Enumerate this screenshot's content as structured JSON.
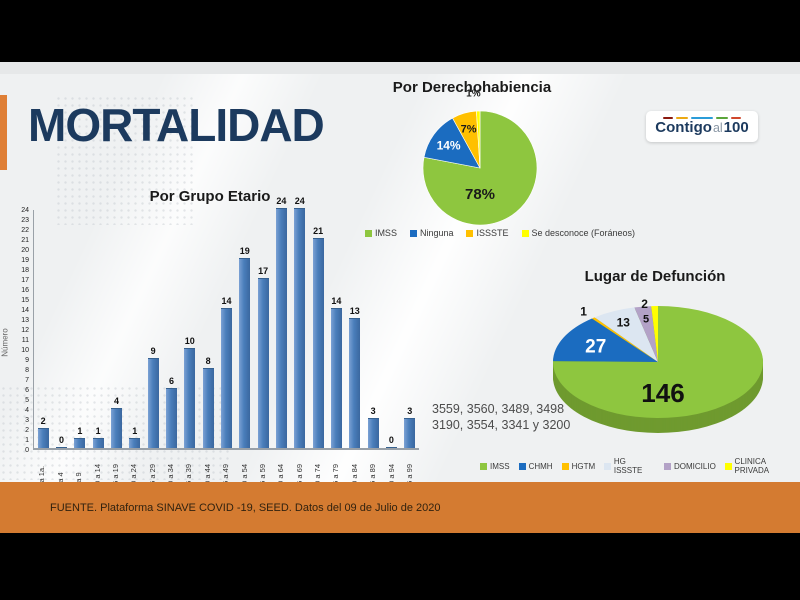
{
  "slide": {
    "title": "MORTALIDAD",
    "footer": "FUENTE. Plataforma SINAVE COVID -19, SEED. Datos del 09 de Julio de 2020",
    "annotation": {
      "line1": "3559, 3560, 3489, 3498",
      "line2": "3190, 3554, 3341 y 3200"
    },
    "logo": {
      "word1": "Contigo",
      "word2": "al",
      "word3": "100",
      "dash_colors": [
        "#8b1a10",
        "#eca913",
        "#2b9cd8",
        "#5aa53a",
        "#d0472c"
      ],
      "dash_widths": [
        10,
        12,
        22,
        12,
        10
      ]
    }
  },
  "colors": {
    "title_navy": "#1c3a5e",
    "accent_orange": "#df7f36",
    "band_orange": "#d47b31",
    "bar_blue": "#4a7ebb"
  },
  "chart_data": [
    {
      "id": "por_grupo_etario",
      "type": "bar",
      "title": "Por Grupo Etario",
      "ylabel": "Número",
      "ylim": [
        0,
        24
      ],
      "y_tick_step": 1,
      "grid": false,
      "categories": [
        "< a 1a.",
        "1 a 4",
        "5 a 9",
        "10 a 14",
        "15 a 19",
        "20 a 24",
        "25 a 29",
        "30 a 34",
        "35 a 39",
        "40 a 44",
        "45 a 49",
        "50 a 54",
        "55 a 59",
        "60 a 64",
        "65 a 69",
        "70 a 74",
        "75 a 79",
        "80 a 84",
        "85 a 89",
        "90 a 94",
        "95 a 99"
      ],
      "values": [
        2,
        0,
        1,
        1,
        4,
        1,
        9,
        6,
        10,
        8,
        14,
        19,
        17,
        24,
        24,
        21,
        14,
        13,
        3,
        0,
        3
      ],
      "bar_color": "#4a7ebb"
    },
    {
      "id": "por_derechohabiencia",
      "type": "pie",
      "title": "Por Derechohabiencia",
      "legend_position": "bottom",
      "slice_stroke": "#ffffff",
      "slices": [
        {
          "label": "IMSS",
          "value": 78,
          "display": "78%",
          "color": "#8ec63f",
          "label_color": "#1a1a1a",
          "label_size": 15,
          "lf": 0.45,
          "la": 180
        },
        {
          "label": "Ninguna",
          "value": 14,
          "display": "14%",
          "color": "#1b6cc0",
          "label_color": "#ffffff",
          "label_size": 12,
          "lf": 0.68
        },
        {
          "label": "ISSSTE",
          "value": 7,
          "display": "7%",
          "color": "#ffc000",
          "label_color": "#1a1a1a",
          "label_size": 11,
          "lf": 0.72
        },
        {
          "label": "Se desconoce (Foráneos)",
          "value": 1,
          "display": "1%",
          "color": "#ffff00",
          "label_color": "#1a1a1a",
          "label_size": 10,
          "lf": 1.32,
          "la": 355
        }
      ]
    },
    {
      "id": "lugar_de_defuncion",
      "type": "pie",
      "title": "Lugar de Defunción",
      "effect": "3d",
      "legend_position": "bottom",
      "side_color": "#6f9a2f",
      "slices": [
        {
          "label": "IMSS",
          "value": 146,
          "display": "146",
          "color": "#8ec63f",
          "label_color": "#111111",
          "label_size": 26,
          "lf": 0.55,
          "la": 175
        },
        {
          "label": "CHMH",
          "value": 27,
          "display": "27",
          "color": "#1b6cc0",
          "label_color": "#ffffff",
          "label_size": 19,
          "lf": 0.66
        },
        {
          "label": "HGTM",
          "value": 1,
          "display": "1",
          "color": "#ffc000",
          "label_color": "#111111",
          "label_size": 12,
          "lf": 1.15
        },
        {
          "label": "HG ISSSTE",
          "value": 13,
          "display": "13",
          "color": "#dce6f1",
          "label_color": "#111111",
          "label_size": 12,
          "lf": 0.78
        },
        {
          "label": "DOMICILIO",
          "value": 5,
          "display": "5",
          "color": "#b3a2c7",
          "label_color": "#111111",
          "label_size": 11,
          "lf": 0.78
        },
        {
          "label": "CLINICA PRIVADA",
          "value": 2,
          "display": "2",
          "color": "#ffff00",
          "label_color": "#111111",
          "label_size": 12,
          "lf": 1.05,
          "la": 353
        }
      ]
    }
  ]
}
